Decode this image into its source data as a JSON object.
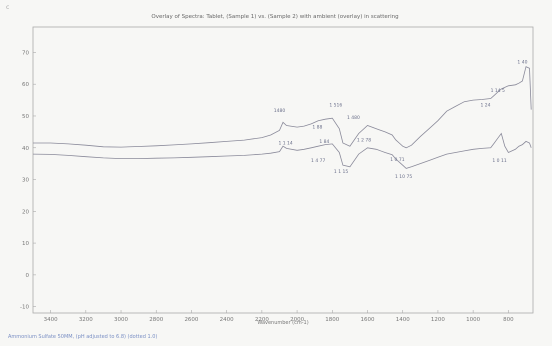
{
  "page": {
    "corner_mark": "c",
    "footer_note": "Ammonium Sulfate 50MM, (pH adjusted to 6.8) (dotted 1.0)"
  },
  "chart_data": {
    "type": "line",
    "title": "Overlay of Spectra: Tablet, (Sample 1) vs. (Sample 2) with ambient (overlay) in scattering",
    "xlabel": "Wavenumber (cm-1)",
    "ylabel": "",
    "x_reversed": true,
    "xlim": [
      3500,
      660
    ],
    "ylim": [
      -12,
      78
    ],
    "x_ticks": [
      3400,
      3200,
      3000,
      2800,
      2600,
      2400,
      2200,
      2000,
      1800,
      1600,
      1400,
      1200,
      1000,
      800
    ],
    "x_tick_labels": [
      "3400",
      "3200",
      "3000",
      "2800",
      "2600",
      "2400",
      "2200",
      "2000",
      "1800",
      "1600",
      "1400",
      "1200",
      "1000",
      "800"
    ],
    "y_ticks": [
      -10,
      0,
      10,
      20,
      30,
      40,
      50,
      60,
      70
    ],
    "y_tick_labels": [
      "-10",
      "0",
      "10",
      "20",
      "30",
      "40",
      "50",
      "60",
      "70"
    ],
    "series": [
      {
        "color": "#8a8a9a",
        "x": [
          3500,
          3400,
          3300,
          3200,
          3100,
          3000,
          2900,
          2800,
          2700,
          2600,
          2500,
          2400,
          2300,
          2200,
          2150,
          2100,
          2080,
          2060,
          2000,
          1960,
          1920,
          1880,
          1840,
          1800,
          1760,
          1740,
          1700,
          1650,
          1600,
          1550,
          1500,
          1460,
          1440,
          1420,
          1400,
          1380,
          1350,
          1300,
          1250,
          1200,
          1150,
          1100,
          1050,
          1000,
          950,
          900,
          880,
          860,
          840,
          820,
          800,
          760,
          740,
          720,
          700,
          680,
          670
        ],
        "y": [
          41.5,
          41.5,
          41.2,
          40.8,
          40.3,
          40.2,
          40.4,
          40.6,
          40.9,
          41.2,
          41.6,
          42.0,
          42.4,
          43.2,
          44.0,
          45.5,
          48.0,
          47.0,
          46.5,
          46.8,
          47.5,
          48.5,
          49.0,
          49.3,
          46.0,
          41.5,
          40.5,
          44.5,
          47.0,
          46.0,
          45.0,
          44.0,
          42.5,
          41.5,
          40.5,
          40.0,
          40.8,
          43.5,
          46.0,
          48.5,
          51.5,
          53.0,
          54.5,
          55.0,
          55.2,
          55.5,
          56.5,
          57.5,
          58.5,
          59.0,
          59.5,
          59.8,
          60.3,
          61.0,
          65.5,
          65.0,
          52.0
        ]
      },
      {
        "color": "#8a8a9a",
        "x": [
          3500,
          3400,
          3300,
          3200,
          3100,
          3000,
          2900,
          2800,
          2700,
          2600,
          2500,
          2400,
          2300,
          2200,
          2150,
          2100,
          2080,
          2060,
          2000,
          1960,
          1920,
          1880,
          1840,
          1800,
          1760,
          1740,
          1700,
          1650,
          1600,
          1550,
          1500,
          1460,
          1440,
          1420,
          1400,
          1380,
          1350,
          1300,
          1250,
          1200,
          1150,
          1100,
          1050,
          1000,
          950,
          900,
          880,
          860,
          840,
          820,
          800,
          760,
          740,
          720,
          700,
          680,
          670
        ],
        "y": [
          38.0,
          37.9,
          37.6,
          37.2,
          36.8,
          36.6,
          36.6,
          36.7,
          36.8,
          37.0,
          37.2,
          37.4,
          37.6,
          38.0,
          38.3,
          38.8,
          40.5,
          39.8,
          39.2,
          39.5,
          40.0,
          40.5,
          41.0,
          41.2,
          38.5,
          34.5,
          34.0,
          38.0,
          40.0,
          39.5,
          38.5,
          37.8,
          36.5,
          35.5,
          34.5,
          33.5,
          34.0,
          35.0,
          36.0,
          37.0,
          38.0,
          38.5,
          39.0,
          39.5,
          39.8,
          40.0,
          41.5,
          43.0,
          44.5,
          40.5,
          38.5,
          39.5,
          40.5,
          41.0,
          42.0,
          41.5,
          40.0
        ]
      }
    ],
    "peak_labels": [
      {
        "x": 2100,
        "y": 51.2,
        "text": "1480"
      },
      {
        "x": 2065,
        "y": 41.0,
        "text": "1 1 14"
      },
      {
        "x": 1780,
        "y": 53.0,
        "text": "1 516"
      },
      {
        "x": 1885,
        "y": 46.0,
        "text": "1 88"
      },
      {
        "x": 1845,
        "y": 41.5,
        "text": "1 84"
      },
      {
        "x": 1680,
        "y": 49.0,
        "text": "1 480"
      },
      {
        "x": 1750,
        "y": 32.0,
        "text": "1 1 15"
      },
      {
        "x": 1620,
        "y": 42.0,
        "text": "1 2 78"
      },
      {
        "x": 1880,
        "y": 35.5,
        "text": "1 4 77"
      },
      {
        "x": 1430,
        "y": 35.8,
        "text": "1 0 71"
      },
      {
        "x": 1395,
        "y": 30.5,
        "text": "1 10 75"
      },
      {
        "x": 930,
        "y": 53.0,
        "text": "1 24"
      },
      {
        "x": 860,
        "y": 57.5,
        "text": "1 14 5"
      },
      {
        "x": 720,
        "y": 66.5,
        "text": "1 40"
      },
      {
        "x": 850,
        "y": 35.5,
        "text": "1 0 11"
      }
    ],
    "grid": false,
    "legend": "none"
  }
}
